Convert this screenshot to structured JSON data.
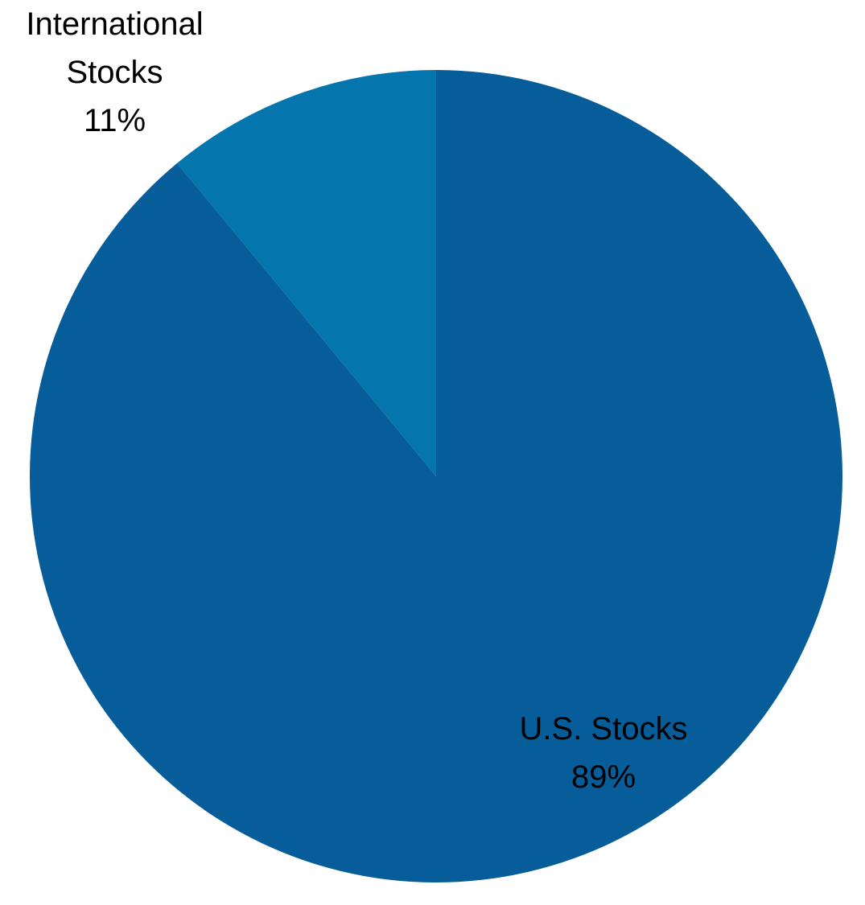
{
  "chart_data": {
    "type": "pie",
    "title": "",
    "slices": [
      {
        "label_lines": [
          "U.S. Stocks"
        ],
        "percent_label": "89%",
        "value": 89,
        "color": "#065D99"
      },
      {
        "label_lines": [
          "International",
          "Stocks"
        ],
        "percent_label": "11%",
        "value": 11,
        "color": "#0475AD"
      }
    ],
    "start_angle": "12 o'clock",
    "direction": "clockwise",
    "legend": "none"
  }
}
